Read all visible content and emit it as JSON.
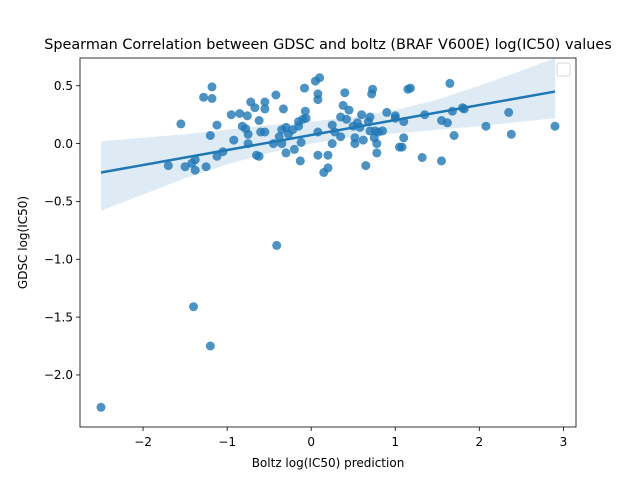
{
  "chart_data": {
    "type": "scatter",
    "title": "Spearman Correlation between GDSC and boltz (BRAF V600E) log(IC50) values",
    "xlabel": "Boltz log(IC50) prediction",
    "ylabel": "GDSC log(IC50)",
    "xlim": [
      -2.75,
      3.15
    ],
    "ylim": [
      -2.45,
      0.74
    ],
    "x_ticks": [
      -2,
      -1,
      0,
      1,
      2,
      3
    ],
    "x_tick_labels": [
      "−2",
      "−1",
      "0",
      "1",
      "2",
      "3"
    ],
    "y_ticks": [
      -2.0,
      -1.5,
      -1.0,
      -0.5,
      0.0,
      0.5
    ],
    "y_tick_labels": [
      "−2.0",
      "−1.5",
      "−1.0",
      "−0.5",
      "0.0",
      "0.5"
    ],
    "grid": false,
    "legend": "top-right (empty)",
    "colors": {
      "points": "#1f77b4",
      "regression_line": "#1f77b4",
      "confidence_band": "#1f77b4"
    },
    "regression": {
      "x": [
        -2.5,
        2.9
      ],
      "y": [
        -0.25,
        0.45
      ]
    },
    "confidence_band": {
      "x": [
        -2.5,
        -2.0,
        -1.5,
        -1.0,
        -0.5,
        0.0,
        0.5,
        1.0,
        1.5,
        2.0,
        2.5,
        2.9
      ],
      "upper": [
        0.02,
        0.05,
        0.08,
        0.12,
        0.16,
        0.19,
        0.23,
        0.29,
        0.38,
        0.5,
        0.63,
        0.74
      ],
      "lower": [
        -0.58,
        -0.44,
        -0.3,
        -0.18,
        -0.08,
        0.0,
        0.06,
        0.09,
        0.12,
        0.15,
        0.19,
        0.22
      ]
    },
    "points": [
      {
        "x": -2.5,
        "y": -2.28
      },
      {
        "x": -1.2,
        "y": -1.75
      },
      {
        "x": -1.4,
        "y": -1.41
      },
      {
        "x": -0.41,
        "y": -0.88
      },
      {
        "x": -1.7,
        "y": -0.19
      },
      {
        "x": -1.55,
        "y": 0.17
      },
      {
        "x": -1.5,
        "y": -0.2
      },
      {
        "x": -1.42,
        "y": -0.17
      },
      {
        "x": -1.38,
        "y": -0.23
      },
      {
        "x": -1.38,
        "y": -0.14
      },
      {
        "x": -1.28,
        "y": 0.4
      },
      {
        "x": -1.25,
        "y": -0.2
      },
      {
        "x": -1.2,
        "y": 0.07
      },
      {
        "x": -1.18,
        "y": 0.39
      },
      {
        "x": -1.18,
        "y": 0.49
      },
      {
        "x": -1.12,
        "y": 0.16
      },
      {
        "x": -1.12,
        "y": -0.11
      },
      {
        "x": -1.05,
        "y": -0.07
      },
      {
        "x": -0.95,
        "y": 0.25
      },
      {
        "x": -0.92,
        "y": 0.03
      },
      {
        "x": -0.85,
        "y": 0.26
      },
      {
        "x": -0.82,
        "y": 0.15
      },
      {
        "x": -0.78,
        "y": 0.13
      },
      {
        "x": -0.76,
        "y": 0.24
      },
      {
        "x": -0.75,
        "y": 0.08
      },
      {
        "x": -0.75,
        "y": 0.0
      },
      {
        "x": -0.72,
        "y": 0.36
      },
      {
        "x": -0.67,
        "y": 0.31
      },
      {
        "x": -0.65,
        "y": -0.1
      },
      {
        "x": -0.62,
        "y": 0.2
      },
      {
        "x": -0.62,
        "y": -0.11
      },
      {
        "x": -0.6,
        "y": 0.1
      },
      {
        "x": -0.55,
        "y": 0.3
      },
      {
        "x": -0.55,
        "y": 0.36
      },
      {
        "x": -0.55,
        "y": 0.1
      },
      {
        "x": -0.45,
        "y": 0.0
      },
      {
        "x": -0.42,
        "y": 0.42
      },
      {
        "x": -0.38,
        "y": 0.06
      },
      {
        "x": -0.35,
        "y": 0.12
      },
      {
        "x": -0.35,
        "y": 0.0
      },
      {
        "x": -0.33,
        "y": 0.3
      },
      {
        "x": -0.3,
        "y": 0.14
      },
      {
        "x": -0.3,
        "y": -0.08
      },
      {
        "x": -0.27,
        "y": 0.08
      },
      {
        "x": -0.22,
        "y": 0.12
      },
      {
        "x": -0.2,
        "y": -0.05
      },
      {
        "x": -0.15,
        "y": 0.19
      },
      {
        "x": -0.15,
        "y": 0.15
      },
      {
        "x": -0.13,
        "y": -0.15
      },
      {
        "x": -0.12,
        "y": 0.01
      },
      {
        "x": -0.1,
        "y": 0.21
      },
      {
        "x": -0.08,
        "y": 0.48
      },
      {
        "x": -0.07,
        "y": 0.28
      },
      {
        "x": -0.06,
        "y": 0.22
      },
      {
        "x": 0.05,
        "y": 0.54
      },
      {
        "x": 0.08,
        "y": 0.43
      },
      {
        "x": 0.08,
        "y": 0.38
      },
      {
        "x": 0.1,
        "y": 0.57
      },
      {
        "x": 0.08,
        "y": 0.1
      },
      {
        "x": 0.08,
        "y": -0.1
      },
      {
        "x": 0.15,
        "y": -0.25
      },
      {
        "x": 0.2,
        "y": -0.21
      },
      {
        "x": 0.2,
        "y": -0.1
      },
      {
        "x": 0.25,
        "y": 0.16
      },
      {
        "x": 0.25,
        "y": 0.0
      },
      {
        "x": 0.28,
        "y": 0.1
      },
      {
        "x": 0.35,
        "y": 0.23
      },
      {
        "x": 0.35,
        "y": 0.06
      },
      {
        "x": 0.38,
        "y": 0.33
      },
      {
        "x": 0.4,
        "y": 0.44
      },
      {
        "x": 0.42,
        "y": 0.21
      },
      {
        "x": 0.45,
        "y": 0.29
      },
      {
        "x": 0.5,
        "y": 0.15
      },
      {
        "x": 0.52,
        "y": 0.05
      },
      {
        "x": 0.52,
        "y": 0.0
      },
      {
        "x": 0.55,
        "y": 0.18
      },
      {
        "x": 0.58,
        "y": 0.14
      },
      {
        "x": 0.6,
        "y": 0.25
      },
      {
        "x": 0.62,
        "y": 0.03
      },
      {
        "x": 0.65,
        "y": -0.19
      },
      {
        "x": 0.68,
        "y": 0.19
      },
      {
        "x": 0.7,
        "y": 0.11
      },
      {
        "x": 0.7,
        "y": 0.23
      },
      {
        "x": 0.72,
        "y": 0.43
      },
      {
        "x": 0.73,
        "y": 0.47
      },
      {
        "x": 0.75,
        "y": 0.05
      },
      {
        "x": 0.76,
        "y": 0.11
      },
      {
        "x": 0.78,
        "y": 0.0
      },
      {
        "x": 0.78,
        "y": -0.08
      },
      {
        "x": 0.8,
        "y": 0.1
      },
      {
        "x": 0.85,
        "y": 0.11
      },
      {
        "x": 0.9,
        "y": 0.27
      },
      {
        "x": 1.0,
        "y": 0.24
      },
      {
        "x": 1.0,
        "y": 0.22
      },
      {
        "x": 1.05,
        "y": -0.03
      },
      {
        "x": 1.08,
        "y": -0.03
      },
      {
        "x": 1.1,
        "y": 0.05
      },
      {
        "x": 1.1,
        "y": 0.19
      },
      {
        "x": 1.15,
        "y": 0.47
      },
      {
        "x": 1.18,
        "y": 0.48
      },
      {
        "x": 1.32,
        "y": -0.12
      },
      {
        "x": 1.35,
        "y": 0.25
      },
      {
        "x": 1.55,
        "y": -0.15
      },
      {
        "x": 1.55,
        "y": 0.2
      },
      {
        "x": 1.62,
        "y": 0.18
      },
      {
        "x": 1.65,
        "y": 0.52
      },
      {
        "x": 1.68,
        "y": 0.28
      },
      {
        "x": 1.7,
        "y": 0.07
      },
      {
        "x": 1.8,
        "y": 0.31
      },
      {
        "x": 1.82,
        "y": 0.3
      },
      {
        "x": 2.08,
        "y": 0.15
      },
      {
        "x": 2.35,
        "y": 0.27
      },
      {
        "x": 2.38,
        "y": 0.08
      },
      {
        "x": 2.9,
        "y": 0.15
      }
    ]
  }
}
